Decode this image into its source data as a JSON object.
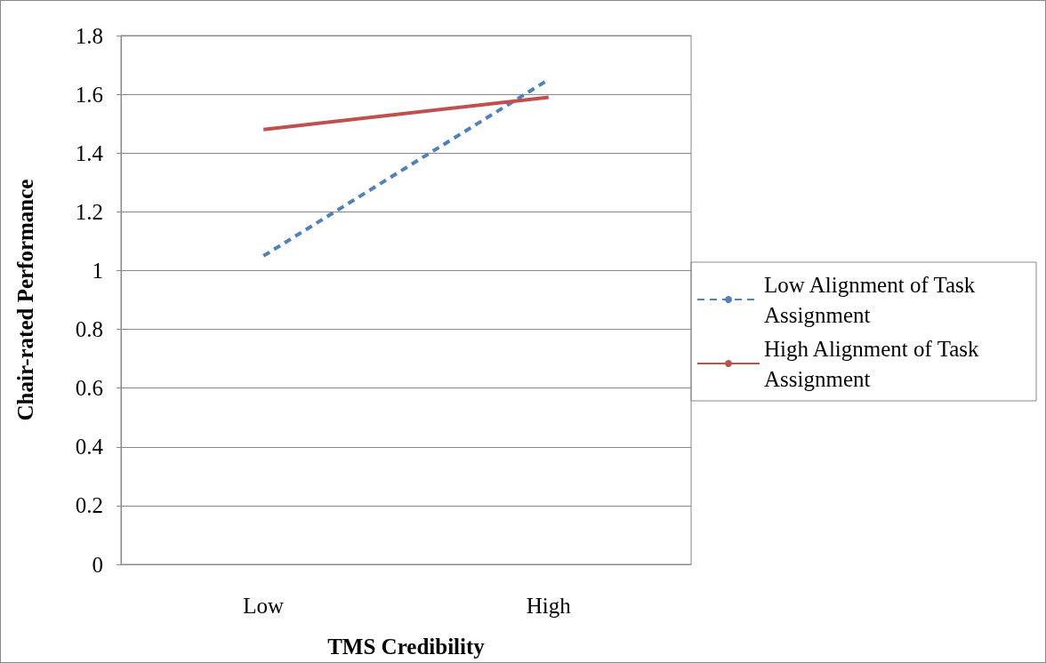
{
  "chart_data": {
    "type": "line",
    "xlabel": "TMS Credibility",
    "ylabel": "Chair-rated Performance",
    "categories": [
      "Low",
      "High"
    ],
    "series": [
      {
        "name": "Low Alignment of Task Assignment",
        "color": "#4f81bd",
        "line_style": "dashed",
        "values": [
          1.05,
          1.65
        ]
      },
      {
        "name": "High Alignment of Task Assignment",
        "color": "#c0504d",
        "line_style": "solid",
        "values": [
          1.48,
          1.59
        ]
      }
    ],
    "ylim": [
      0,
      1.8
    ],
    "yticks": [
      0,
      0.2,
      0.4,
      0.6,
      0.8,
      1,
      1.2,
      1.4,
      1.6,
      1.8
    ],
    "grid": "y",
    "legend": "right",
    "marker": "none"
  }
}
